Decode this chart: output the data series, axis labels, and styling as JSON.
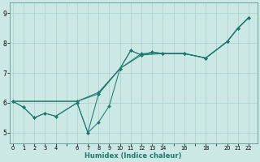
{
  "xlabel": "Humidex (Indice chaleur)",
  "background_color": "#cce8e5",
  "grid_color": "#aad0cc",
  "line_color": "#1e7b6e",
  "lines": [
    {
      "x": [
        0,
        1,
        2,
        3,
        4,
        6,
        7,
        8,
        9,
        10,
        11,
        12,
        13,
        14,
        16,
        18,
        20,
        21,
        22
      ],
      "y": [
        6.05,
        5.85,
        5.5,
        5.65,
        5.55,
        6.0,
        5.0,
        5.35,
        5.9,
        7.15,
        7.75,
        7.6,
        7.7,
        7.65,
        7.65,
        7.5,
        8.05,
        8.5,
        8.85
      ]
    },
    {
      "x": [
        0,
        1,
        2,
        3,
        4,
        6,
        7,
        8,
        10,
        11,
        12,
        13,
        14,
        16,
        18,
        20,
        21,
        22
      ],
      "y": [
        6.05,
        5.85,
        5.5,
        5.65,
        5.55,
        6.0,
        5.0,
        6.3,
        7.15,
        7.75,
        7.6,
        7.7,
        7.65,
        7.65,
        7.5,
        8.05,
        8.5,
        8.85
      ]
    },
    {
      "x": [
        0,
        6,
        8,
        10,
        12,
        14,
        16,
        18,
        20,
        21,
        22
      ],
      "y": [
        6.05,
        6.05,
        6.35,
        7.15,
        7.65,
        7.65,
        7.65,
        7.5,
        8.05,
        8.5,
        8.85
      ]
    },
    {
      "x": [
        0,
        6,
        8,
        10,
        12,
        14,
        16,
        18,
        20,
        21,
        22
      ],
      "y": [
        6.05,
        6.05,
        6.3,
        7.15,
        7.6,
        7.65,
        7.65,
        7.5,
        8.05,
        8.5,
        8.85
      ]
    }
  ],
  "xlim": [
    -0.3,
    22.8
  ],
  "ylim": [
    4.65,
    9.35
  ],
  "yticks": [
    5,
    6,
    7,
    8,
    9
  ],
  "xtick_labels": [
    "0",
    "1",
    "2",
    "3",
    "4",
    "",
    "6",
    "7",
    "8",
    "9",
    "10",
    "11",
    "12",
    "13",
    "14",
    "",
    "16",
    "",
    "18",
    "",
    "20",
    "21",
    "22"
  ]
}
